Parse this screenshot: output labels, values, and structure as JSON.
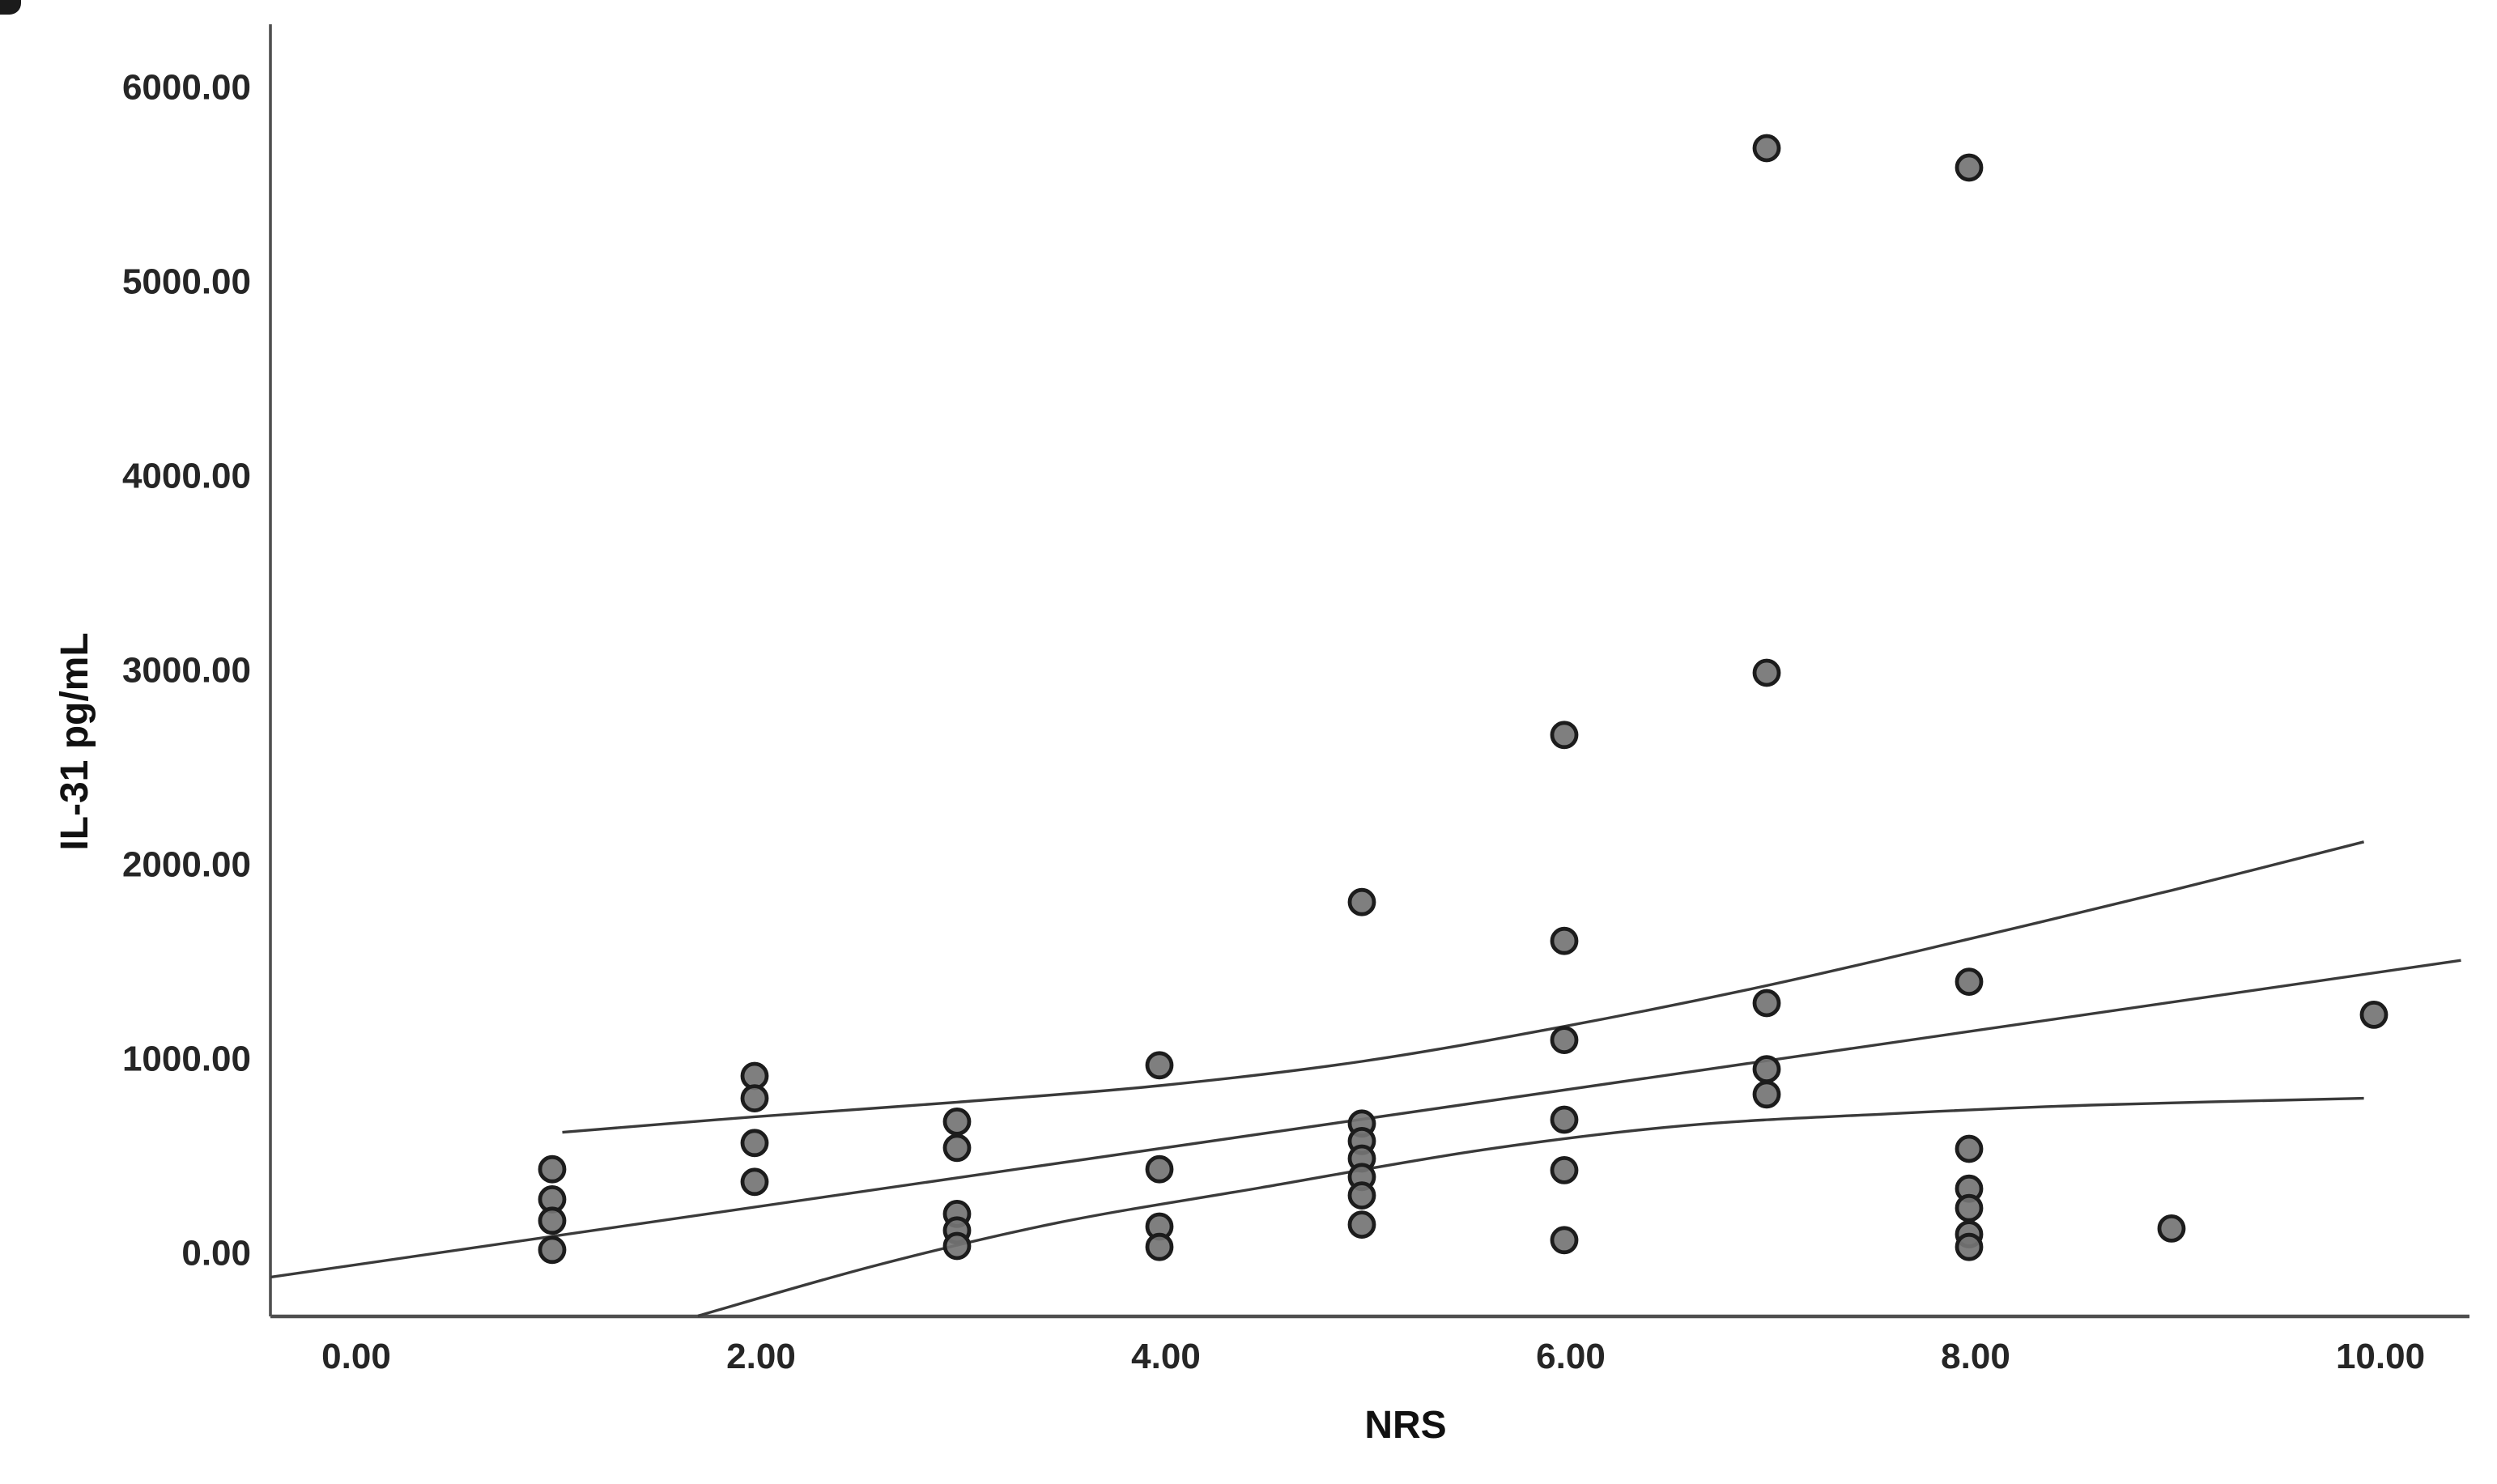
{
  "chart_data": {
    "type": "scatter",
    "title": "",
    "xlabel": "NRS",
    "ylabel": "IL-31 pg/mL",
    "xlim": [
      -0.45,
      10.45
    ],
    "ylim": [
      -315,
      6450
    ],
    "grid": false,
    "legend": "none",
    "x_ticks": {
      "values": [
        0,
        2,
        4,
        6,
        8,
        10
      ],
      "labels": [
        "0.00",
        "2.00",
        "4.00",
        "6.00",
        "8.00",
        "10.00"
      ]
    },
    "y_ticks": {
      "values": [
        0,
        1000,
        2000,
        3000,
        4000,
        5000,
        6000
      ],
      "labels": [
        "0.00",
        "1000.00",
        "2000.00",
        "3000.00",
        "4000.00",
        "5000.00",
        "6000.00"
      ]
    },
    "points": [
      [
        1,
        445
      ],
      [
        1,
        290
      ],
      [
        1,
        180
      ],
      [
        1,
        30
      ],
      [
        2,
        925
      ],
      [
        2,
        810
      ],
      [
        2,
        580
      ],
      [
        2,
        380
      ],
      [
        3,
        690
      ],
      [
        3,
        555
      ],
      [
        3,
        215
      ],
      [
        3,
        130
      ],
      [
        3,
        50
      ],
      [
        4,
        980
      ],
      [
        4,
        445
      ],
      [
        4,
        150
      ],
      [
        4,
        45
      ],
      [
        5,
        1820
      ],
      [
        5,
        680
      ],
      [
        5,
        590
      ],
      [
        5,
        500
      ],
      [
        5,
        405
      ],
      [
        5,
        310
      ],
      [
        5,
        160
      ],
      [
        6,
        2680
      ],
      [
        6,
        1620
      ],
      [
        6,
        1110
      ],
      [
        6,
        700
      ],
      [
        6,
        440
      ],
      [
        6,
        80
      ],
      [
        7,
        5700
      ],
      [
        7,
        3000
      ],
      [
        7,
        1300
      ],
      [
        7,
        960
      ],
      [
        7,
        830
      ],
      [
        8,
        5600
      ],
      [
        8,
        1410
      ],
      [
        8,
        550
      ],
      [
        8,
        345
      ],
      [
        8,
        245
      ],
      [
        8,
        110
      ],
      [
        8,
        45
      ],
      [
        9,
        140
      ],
      [
        10,
        1240
      ]
    ],
    "fit_line": [
      [
        -0.39,
        -110
      ],
      [
        10.43,
        1520
      ]
    ],
    "upper_ci": [
      [
        1.05,
        635
      ],
      [
        2,
        715
      ],
      [
        3,
        790
      ],
      [
        4,
        875
      ],
      [
        5,
        1000
      ],
      [
        6,
        1180
      ],
      [
        7,
        1390
      ],
      [
        8,
        1630
      ],
      [
        9,
        1880
      ],
      [
        9.95,
        2130
      ]
    ],
    "lower_ci": [
      [
        1.72,
        -310
      ],
      [
        2.6,
        -50
      ],
      [
        3.5,
        170
      ],
      [
        4.5,
        350
      ],
      [
        5.6,
        545
      ],
      [
        6.6,
        670
      ],
      [
        7.6,
        730
      ],
      [
        8.6,
        775
      ],
      [
        9.95,
        810
      ]
    ],
    "colors": {
      "dot_fill": "#747474",
      "dot_stroke": "#1c1c1c",
      "line": "#3a3a3a",
      "axis": "#4f4f4f",
      "label": "#262626"
    }
  }
}
